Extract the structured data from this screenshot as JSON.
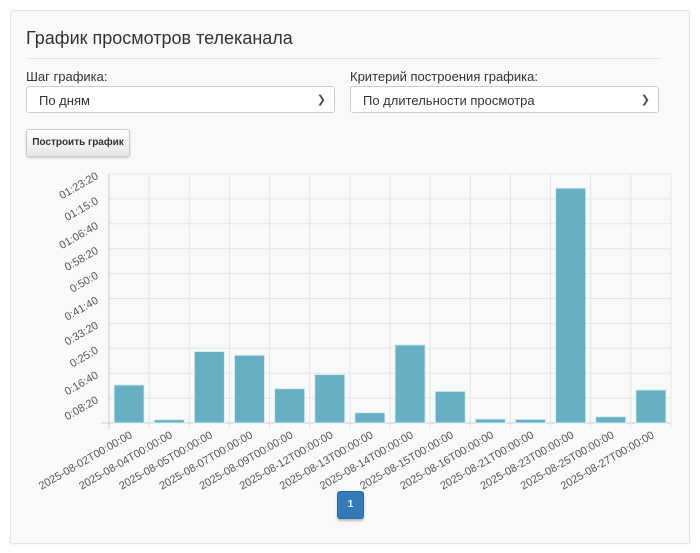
{
  "title": "График просмотров телеканала",
  "step": {
    "label": "Шаг графика:",
    "value": "По дням"
  },
  "criterion": {
    "label": "Критерий построения графика:",
    "value": "По длительности просмотра"
  },
  "build_button": "Построить график",
  "pagination": {
    "current": "1"
  },
  "chart_data": {
    "type": "bar",
    "categories": [
      "2025-08-02T00:00:00",
      "2025-08-04T00:00:00",
      "2025-08-05T00:00:00",
      "2025-08-07T00:00:00",
      "2025-08-09T00:00:00",
      "2025-08-12T00:00:00",
      "2025-08-13T00:00:00",
      "2025-08-14T00:00:00",
      "2025-08-15T00:00:00",
      "2025-08-16T00:00:00",
      "2025-08-21T00:00:00",
      "2025-08-23T00:00:00",
      "2025-08-25T00:00:00",
      "2025-08-27T00:00:00"
    ],
    "values_seconds": [
      765,
      67,
      1436,
      1362,
      691,
      973,
      208,
      1570,
      637,
      80,
      74,
      4717,
      127,
      664
    ],
    "ylim": [
      0,
      5000
    ],
    "yticks": [
      500,
      1000,
      1500,
      2000,
      2500,
      3000,
      3500,
      4000,
      4500,
      5000
    ],
    "ytick_labels": [
      "0:08:20",
      "0:16:40",
      "0:25:0",
      "0:33:20",
      "0:41:40",
      "0:50:0",
      "0:58:20",
      "01:06:40",
      "01:15:0",
      "01:23:20"
    ],
    "bar_color": "#67b0c4",
    "grid": true
  }
}
